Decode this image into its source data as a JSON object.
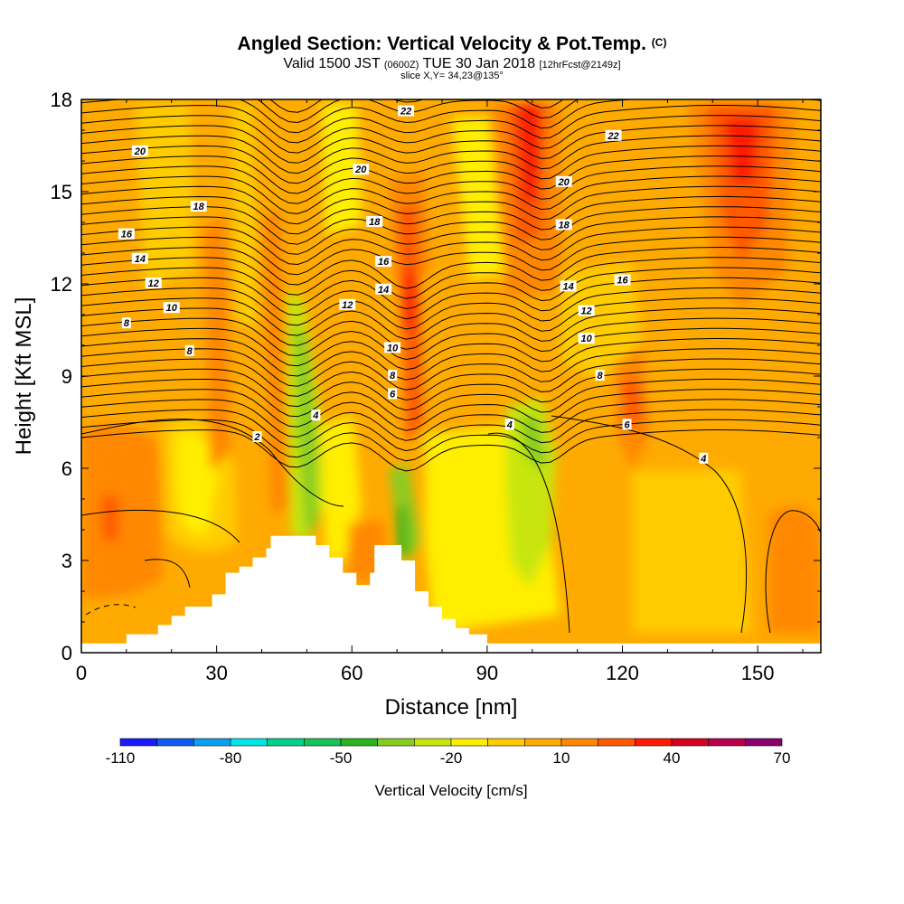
{
  "chart_data": {
    "type": "heatmap",
    "title": "Angled Section: Vertical Velocity & Pot.Temp.",
    "title_suffix": "(C)",
    "subtitle_main": "Valid 1500 JST",
    "subtitle_utc": "(0600Z)",
    "subtitle_date": "TUE 30 Jan 2018",
    "subtitle_fcst": "[12hrFcst@2149z]",
    "slice_label": "slice X,Y= 34,23@135°",
    "xlabel": "Distance [nm]",
    "ylabel": "Height [Kft MSL]",
    "xlim": [
      0,
      164
    ],
    "ylim": [
      0,
      18
    ],
    "xticks": [
      0,
      30,
      60,
      90,
      120,
      150
    ],
    "yticks": [
      0,
      3,
      6,
      9,
      12,
      15,
      18
    ],
    "grid": false,
    "colorbar": {
      "label": "Vertical Velocity [cm/s]",
      "levels": [
        -110,
        -100,
        -90,
        -80,
        -70,
        -60,
        -50,
        -40,
        -30,
        -20,
        -10,
        0,
        10,
        20,
        30,
        40,
        50,
        60,
        70
      ],
      "tick_values": [
        -110,
        -80,
        -50,
        -20,
        10,
        40,
        70
      ],
      "colors": [
        "#1a1aff",
        "#0a5cf0",
        "#0ea0f0",
        "#00e6e6",
        "#00d28c",
        "#16c25a",
        "#2cb41e",
        "#88cc22",
        "#c8e60c",
        "#ffee00",
        "#ffcc00",
        "#ffaa00",
        "#ff8800",
        "#ff5a00",
        "#ff1a00",
        "#d80020",
        "#b8004a",
        "#8c0070"
      ]
    },
    "contour_labels": [
      {
        "text": "22",
        "x": 72,
        "y": 17.6
      },
      {
        "text": "22",
        "x": 118,
        "y": 16.8
      },
      {
        "text": "20",
        "x": 13,
        "y": 16.3
      },
      {
        "text": "20",
        "x": 62,
        "y": 15.7
      },
      {
        "text": "20",
        "x": 107,
        "y": 15.3
      },
      {
        "text": "18",
        "x": 26,
        "y": 14.5
      },
      {
        "text": "18",
        "x": 65,
        "y": 14.0
      },
      {
        "text": "18",
        "x": 107,
        "y": 13.9
      },
      {
        "text": "16",
        "x": 10,
        "y": 13.6
      },
      {
        "text": "16",
        "x": 67,
        "y": 12.7
      },
      {
        "text": "16",
        "x": 120,
        "y": 12.1
      },
      {
        "text": "14",
        "x": 13,
        "y": 12.8
      },
      {
        "text": "14",
        "x": 67,
        "y": 11.8
      },
      {
        "text": "14",
        "x": 108,
        "y": 11.9
      },
      {
        "text": "12",
        "x": 16,
        "y": 12.0
      },
      {
        "text": "12",
        "x": 59,
        "y": 11.3
      },
      {
        "text": "12",
        "x": 112,
        "y": 11.1
      },
      {
        "text": "10",
        "x": 20,
        "y": 11.2
      },
      {
        "text": "10",
        "x": 69,
        "y": 9.9
      },
      {
        "text": "10",
        "x": 112,
        "y": 10.2
      },
      {
        "text": "8",
        "x": 10,
        "y": 10.7
      },
      {
        "text": "8",
        "x": 69,
        "y": 9.0
      },
      {
        "text": "8",
        "x": 115,
        "y": 9.0
      },
      {
        "text": "8",
        "x": 24,
        "y": 9.8
      },
      {
        "text": "6",
        "x": 69,
        "y": 8.4
      },
      {
        "text": "6",
        "x": 121,
        "y": 7.4
      },
      {
        "text": "4",
        "x": 52,
        "y": 7.7
      },
      {
        "text": "4",
        "x": 95,
        "y": 7.4
      },
      {
        "text": "4",
        "x": 138,
        "y": 6.3
      },
      {
        "text": "2",
        "x": 39,
        "y": 7.0
      }
    ],
    "terrain_profile": [
      {
        "x": 0,
        "y": 0.3
      },
      {
        "x": 10,
        "y": 0.6
      },
      {
        "x": 17,
        "y": 0.9
      },
      {
        "x": 20,
        "y": 1.2
      },
      {
        "x": 23,
        "y": 1.5
      },
      {
        "x": 29,
        "y": 1.9
      },
      {
        "x": 32,
        "y": 2.6
      },
      {
        "x": 35,
        "y": 2.8
      },
      {
        "x": 38,
        "y": 3.1
      },
      {
        "x": 41,
        "y": 3.4
      },
      {
        "x": 42,
        "y": 3.8
      },
      {
        "x": 52,
        "y": 3.5
      },
      {
        "x": 55,
        "y": 3.1
      },
      {
        "x": 58,
        "y": 2.6
      },
      {
        "x": 61,
        "y": 2.2
      },
      {
        "x": 64,
        "y": 2.6
      },
      {
        "x": 65,
        "y": 3.5
      },
      {
        "x": 71,
        "y": 3.0
      },
      {
        "x": 74,
        "y": 2.0
      },
      {
        "x": 77,
        "y": 1.5
      },
      {
        "x": 80,
        "y": 1.1
      },
      {
        "x": 83,
        "y": 0.8
      },
      {
        "x": 86,
        "y": 0.6
      },
      {
        "x": 90,
        "y": 0.3
      },
      {
        "x": 164,
        "y": 0.3
      }
    ]
  }
}
